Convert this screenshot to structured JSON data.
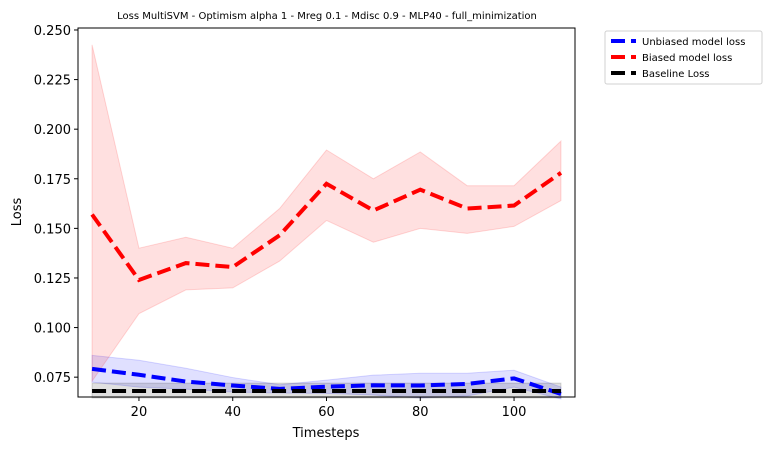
{
  "chart_data": {
    "type": "line",
    "title": "Loss MultiSVM - Optimism alpha 1 - Mreg 0.1 - Mdisc 0.9 - MLP40 - full_minimization",
    "xlabel": "Timesteps",
    "ylabel": "Loss",
    "xlim": [
      7,
      113
    ],
    "ylim": [
      0.065,
      0.251
    ],
    "xticks": [
      20,
      40,
      60,
      80,
      100
    ],
    "xtick_labels": [
      "20",
      "40",
      "60",
      "80",
      "100"
    ],
    "yticks": [
      0.075,
      0.1,
      0.125,
      0.15,
      0.175,
      0.2,
      0.225,
      0.25
    ],
    "ytick_labels": [
      "0.075",
      "0.100",
      "0.125",
      "0.150",
      "0.175",
      "0.200",
      "0.225",
      "0.250"
    ],
    "grid": false,
    "legend_position": "outside-top-right",
    "x": [
      10,
      20,
      30,
      40,
      50,
      60,
      70,
      80,
      90,
      100,
      110
    ],
    "series": [
      {
        "name": "Unbiased model loss",
        "color": "#0000ff",
        "band_color": "#0000ff",
        "values": [
          0.0792,
          0.0762,
          0.0728,
          0.0708,
          0.0691,
          0.0702,
          0.0709,
          0.0708,
          0.0716,
          0.0744,
          0.0665
        ],
        "lower": [
          0.0725,
          0.07,
          0.069,
          0.0675,
          0.067,
          0.0668,
          0.066,
          0.0645,
          0.0655,
          0.07,
          0.064
        ],
        "upper": [
          0.086,
          0.0835,
          0.0795,
          0.0748,
          0.0712,
          0.0735,
          0.076,
          0.077,
          0.077,
          0.0785,
          0.07
        ]
      },
      {
        "name": "Biased model loss",
        "color": "#ff0000",
        "band_color": "#ff0000",
        "values": [
          0.157,
          0.124,
          0.1325,
          0.1305,
          0.1465,
          0.1725,
          0.159,
          0.1695,
          0.16,
          0.1615,
          0.178
        ],
        "lower": [
          0.073,
          0.107,
          0.119,
          0.12,
          0.1335,
          0.154,
          0.143,
          0.15,
          0.1475,
          0.151,
          0.164
        ],
        "upper": [
          0.2425,
          0.14,
          0.1455,
          0.14,
          0.16,
          0.1895,
          0.175,
          0.1885,
          0.1715,
          0.1715,
          0.194
        ]
      },
      {
        "name": "Baseline Loss",
        "color": "#000000",
        "band_color": "#000000",
        "values": [
          0.068,
          0.068,
          0.068,
          0.068,
          0.068,
          0.068,
          0.068,
          0.068,
          0.068,
          0.068,
          0.068
        ],
        "lower": [
          0.0645,
          0.0645,
          0.0645,
          0.0645,
          0.0645,
          0.0645,
          0.0645,
          0.0645,
          0.0645,
          0.0645,
          0.0645
        ],
        "upper": [
          0.072,
          0.072,
          0.072,
          0.072,
          0.072,
          0.072,
          0.072,
          0.072,
          0.072,
          0.072,
          0.072
        ]
      }
    ]
  }
}
